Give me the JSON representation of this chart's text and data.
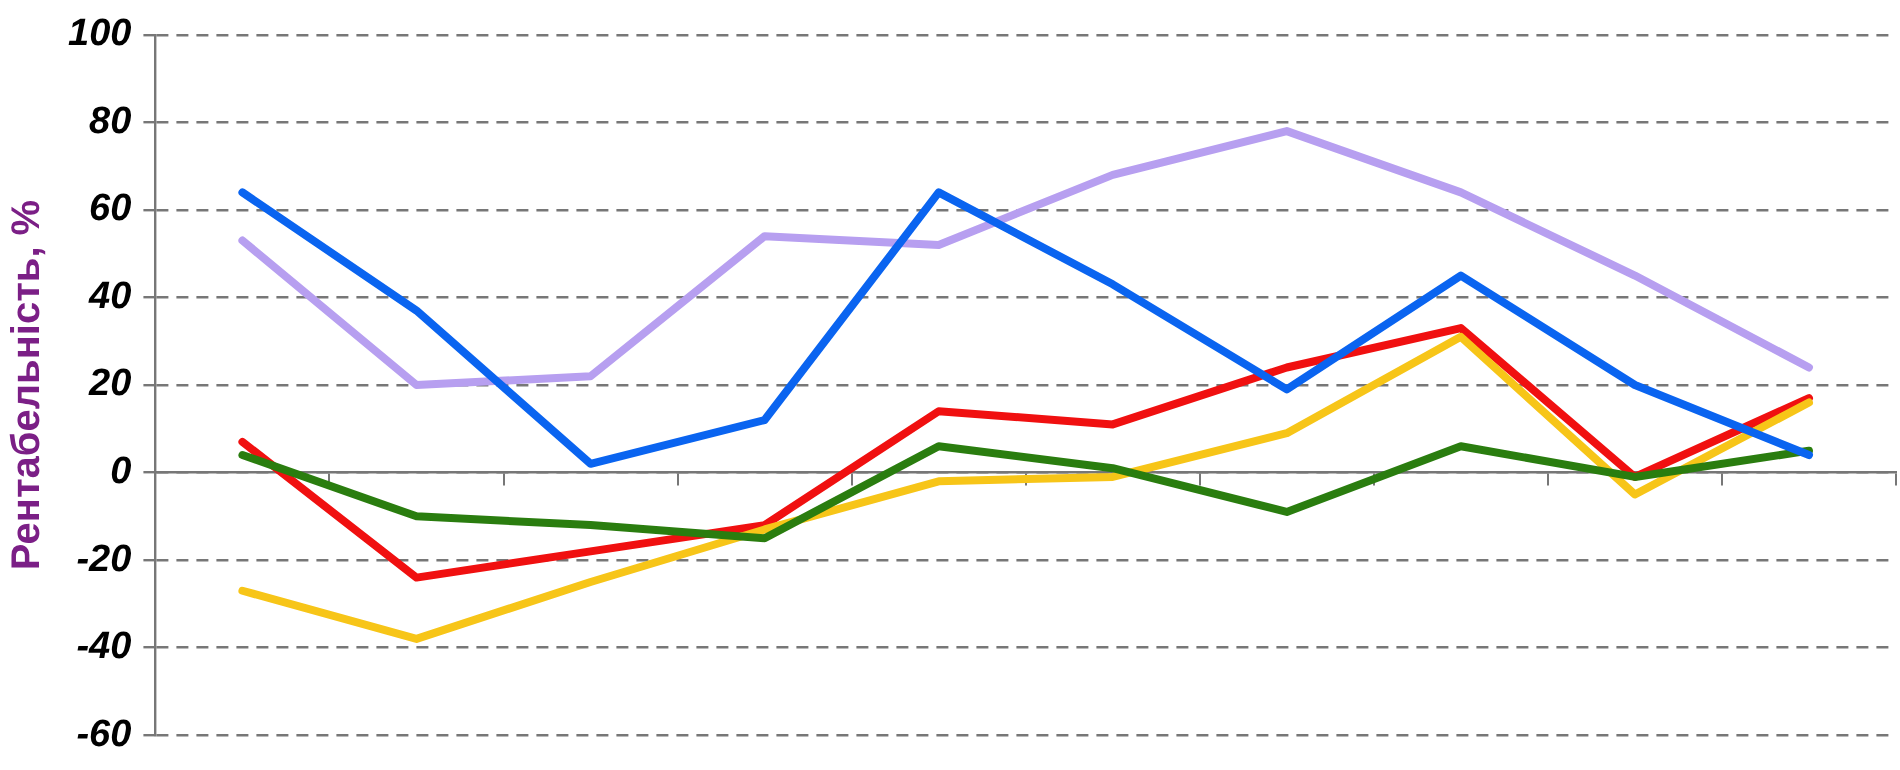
{
  "chart_data": {
    "type": "line",
    "ylabel": "Рентабельність, %",
    "categories": [
      null,
      null,
      null,
      null,
      null,
      null,
      null,
      null,
      null,
      null
    ],
    "series": [
      {
        "color": "#0a64f0",
        "values": [
          64,
          37,
          2,
          12,
          64,
          43,
          19,
          45,
          20,
          4
        ]
      },
      {
        "color": "#b79ff0",
        "values": [
          53,
          20,
          22,
          54,
          52,
          68,
          78,
          64,
          45,
          24
        ]
      },
      {
        "color": "#2a7d0f",
        "values": [
          4,
          -10,
          -12,
          -15,
          6,
          1,
          -9,
          6,
          -1,
          5
        ]
      },
      {
        "color": "#f7c518",
        "values": [
          -27,
          -38,
          -25,
          -13,
          -2,
          -1,
          9,
          31,
          -5,
          16
        ]
      },
      {
        "color": "#f01010",
        "values": [
          7,
          -24,
          -18,
          -12,
          14,
          11,
          24,
          33,
          -1,
          17
        ]
      }
    ],
    "ylim": [
      -60,
      100
    ],
    "yticks": [
      -60,
      -40,
      -20,
      0,
      20,
      40,
      60,
      80,
      100
    ],
    "grid": "y",
    "legend": false,
    "marker": "none",
    "line_style": "solid",
    "tick_labels": "y"
  }
}
